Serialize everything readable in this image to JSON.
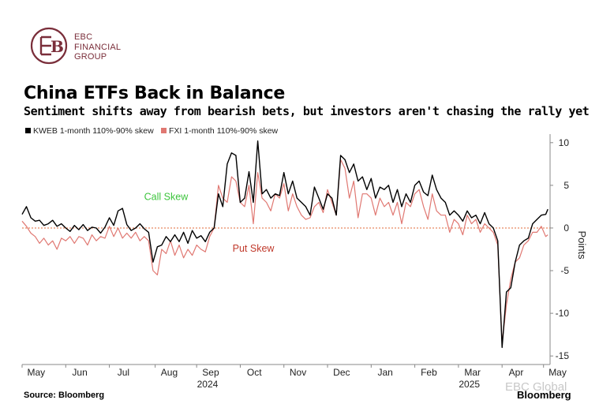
{
  "brand": {
    "line1": "EBC",
    "line2": "FINANCIAL",
    "line3": "GROUP",
    "logo_letter": "B",
    "color": "#7a2e3a"
  },
  "title": "China ETFs Back in Balance",
  "subtitle": "Sentiment shifts away from bearish bets, but investors aren't chasing the rally yet",
  "source": "Source: Bloomberg",
  "bloomberg_logo": "Bloomberg",
  "watermark": "EBC Global",
  "chart_data": {
    "type": "line",
    "title": "China ETFs Back in Balance",
    "ylabel": "Points",
    "ylim": [
      -16,
      11
    ],
    "yticks": [
      10,
      5,
      0,
      -5,
      -10,
      -15
    ],
    "xlim": [
      0,
      12.1
    ],
    "x_ticks": [
      {
        "label": "May",
        "x": 0.25
      },
      {
        "label": "Jun",
        "x": 1.25
      },
      {
        "label": "Jul",
        "x": 2.25
      },
      {
        "label": "Aug",
        "x": 3.3
      },
      {
        "label": "Sep",
        "x": 4.25
      },
      {
        "label": "Oct",
        "x": 5.25
      },
      {
        "label": "Nov",
        "x": 6.25
      },
      {
        "label": "Dec",
        "x": 7.25
      },
      {
        "label": "Jan",
        "x": 8.25
      },
      {
        "label": "Feb",
        "x": 9.25
      },
      {
        "label": "Mar",
        "x": 10.25
      },
      {
        "label": "Apr",
        "x": 11.25
      },
      {
        "label": "May",
        "x": 12.2
      }
    ],
    "year_labels": [
      {
        "label": "2024",
        "x": 4.25
      },
      {
        "label": "2025",
        "x": 10.25
      }
    ],
    "zero_line": 0,
    "annotations": [
      {
        "text": "Call Skew",
        "x": 3.3,
        "y": 3.3,
        "color": "#3cc43c"
      },
      {
        "text": "Put Skew",
        "x": 5.3,
        "y": -2.8,
        "color": "#c0392b"
      }
    ],
    "series": [
      {
        "name": "KWEB 1-month 110%-90% skew",
        "color": "#000000",
        "x": [
          0,
          0.1,
          0.2,
          0.3,
          0.4,
          0.5,
          0.6,
          0.7,
          0.8,
          0.9,
          1.0,
          1.1,
          1.2,
          1.3,
          1.4,
          1.5,
          1.6,
          1.7,
          1.8,
          1.9,
          2.0,
          2.1,
          2.2,
          2.3,
          2.4,
          2.5,
          2.6,
          2.7,
          2.8,
          2.9,
          3.0,
          3.1,
          3.2,
          3.3,
          3.4,
          3.5,
          3.6,
          3.7,
          3.8,
          3.9,
          4.0,
          4.1,
          4.2,
          4.3,
          4.4,
          4.5,
          4.6,
          4.7,
          4.8,
          4.9,
          5.0,
          5.1,
          5.2,
          5.3,
          5.4,
          5.5,
          5.6,
          5.7,
          5.8,
          5.9,
          6.0,
          6.1,
          6.2,
          6.3,
          6.4,
          6.5,
          6.6,
          6.7,
          6.8,
          6.9,
          7.0,
          7.1,
          7.2,
          7.3,
          7.4,
          7.5,
          7.6,
          7.7,
          7.8,
          7.9,
          8.0,
          8.1,
          8.2,
          8.3,
          8.4,
          8.5,
          8.6,
          8.7,
          8.8,
          8.9,
          9.0,
          9.1,
          9.2,
          9.3,
          9.4,
          9.5,
          9.6,
          9.7,
          9.8,
          9.9,
          10.0,
          10.1,
          10.2,
          10.3,
          10.4,
          10.5,
          10.6,
          10.7,
          10.8,
          10.9,
          11.0,
          11.1,
          11.2,
          11.3,
          11.4,
          11.5,
          11.6,
          11.7,
          11.8,
          11.9,
          12.0,
          12.05
        ],
        "values": [
          1.6,
          2.5,
          1.2,
          0.8,
          0.9,
          0.3,
          0.5,
          0.9,
          0.2,
          0.5,
          0.0,
          -0.4,
          0.3,
          -0.2,
          0.4,
          -0.3,
          0.1,
          0.0,
          -0.6,
          0.1,
          1.2,
          0.3,
          2.0,
          2.3,
          0.4,
          -0.3,
          0.0,
          0.5,
          -0.1,
          -0.5,
          -4.0,
          -2.2,
          -2.0,
          -1.0,
          -1.6,
          -0.8,
          -1.6,
          -0.5,
          -1.8,
          -0.3,
          -1.2,
          -0.9,
          -1.6,
          -0.5,
          0.0,
          4.0,
          2.5,
          7.5,
          8.8,
          8.5,
          3.0,
          3.5,
          6.6,
          3.0,
          10.2,
          4.0,
          4.5,
          3.5,
          4.0,
          3.8,
          6.5,
          4.0,
          5.5,
          3.5,
          3.0,
          2.5,
          1.5,
          4.8,
          3.5,
          2.2,
          4.0,
          3.5,
          1.5,
          8.5,
          8.0,
          6.5,
          7.5,
          5.5,
          6.0,
          4.5,
          5.8,
          3.5,
          4.8,
          4.5,
          5.0,
          3.0,
          4.5,
          2.5,
          4.0,
          3.0,
          5.0,
          5.5,
          4.2,
          3.8,
          6.2,
          4.5,
          3.5,
          3.0,
          1.5,
          2.0,
          1.5,
          0.8,
          2.0,
          1.2,
          1.5,
          0.5,
          1.8,
          0.5,
          0.0,
          -1.5,
          -14.0,
          -7.5,
          -7.0,
          -4.0,
          -2.0,
          -1.5,
          -1.2,
          0.5,
          1.0,
          1.5,
          1.6,
          2.2
        ]
      },
      {
        "name": "FXI 1-month 110%-90% skew",
        "color": "#e07872",
        "x": [
          0,
          0.1,
          0.2,
          0.3,
          0.4,
          0.5,
          0.6,
          0.7,
          0.8,
          0.9,
          1.0,
          1.1,
          1.2,
          1.3,
          1.4,
          1.5,
          1.6,
          1.7,
          1.8,
          1.9,
          2.0,
          2.1,
          2.2,
          2.3,
          2.4,
          2.5,
          2.6,
          2.7,
          2.8,
          2.9,
          3.0,
          3.1,
          3.2,
          3.3,
          3.4,
          3.5,
          3.6,
          3.7,
          3.8,
          3.9,
          4.0,
          4.1,
          4.2,
          4.3,
          4.4,
          4.5,
          4.6,
          4.7,
          4.8,
          4.9,
          5.0,
          5.1,
          5.2,
          5.3,
          5.4,
          5.5,
          5.6,
          5.7,
          5.8,
          5.9,
          6.0,
          6.1,
          6.2,
          6.3,
          6.4,
          6.5,
          6.6,
          6.7,
          6.8,
          6.9,
          7.0,
          7.1,
          7.2,
          7.3,
          7.4,
          7.5,
          7.6,
          7.7,
          7.8,
          7.9,
          8.0,
          8.1,
          8.2,
          8.3,
          8.4,
          8.5,
          8.6,
          8.7,
          8.8,
          8.9,
          9.0,
          9.1,
          9.2,
          9.3,
          9.4,
          9.5,
          9.6,
          9.7,
          9.8,
          9.9,
          10.0,
          10.1,
          10.2,
          10.3,
          10.4,
          10.5,
          10.6,
          10.7,
          10.8,
          10.9,
          11.0,
          11.1,
          11.2,
          11.3,
          11.4,
          11.5,
          11.6,
          11.7,
          11.8,
          11.9,
          12.0,
          12.05
        ],
        "values": [
          0.8,
          0.2,
          -0.6,
          -1.0,
          -1.8,
          -1.2,
          -2.0,
          -1.5,
          -2.5,
          -1.2,
          -1.5,
          -1.0,
          -1.8,
          -1.0,
          -1.2,
          -2.0,
          -0.8,
          -1.5,
          -1.0,
          -1.2,
          0.2,
          -1.0,
          0.0,
          -1.2,
          -0.6,
          -1.2,
          -0.5,
          -1.5,
          -1.0,
          -1.5,
          -5.0,
          -5.5,
          -2.5,
          -3.0,
          -1.5,
          -3.2,
          -2.0,
          -3.5,
          -2.5,
          -3.2,
          -2.0,
          -2.5,
          -2.8,
          -1.0,
          0.0,
          5.0,
          3.5,
          3.0,
          6.0,
          5.5,
          3.0,
          2.5,
          5.0,
          0.5,
          6.5,
          3.5,
          3.0,
          2.0,
          4.0,
          3.5,
          5.2,
          2.0,
          4.0,
          2.5,
          1.5,
          1.0,
          1.2,
          2.5,
          3.0,
          1.8,
          4.5,
          3.0,
          1.5,
          8.0,
          7.0,
          3.5,
          5.5,
          1.2,
          4.0,
          4.0,
          3.5,
          1.5,
          3.5,
          2.5,
          3.0,
          1.5,
          3.0,
          0.5,
          3.0,
          2.5,
          4.0,
          4.5,
          2.5,
          1.0,
          4.0,
          2.0,
          1.5,
          1.5,
          -0.5,
          1.0,
          0.5,
          -0.8,
          1.5,
          0.5,
          1.0,
          -0.5,
          0.5,
          0.0,
          -0.5,
          -2.0,
          -13.5,
          -9.0,
          -6.0,
          -4.0,
          -3.5,
          -2.0,
          -1.5,
          -0.5,
          -0.5,
          0.2,
          -1.0,
          -0.8
        ]
      }
    ]
  }
}
